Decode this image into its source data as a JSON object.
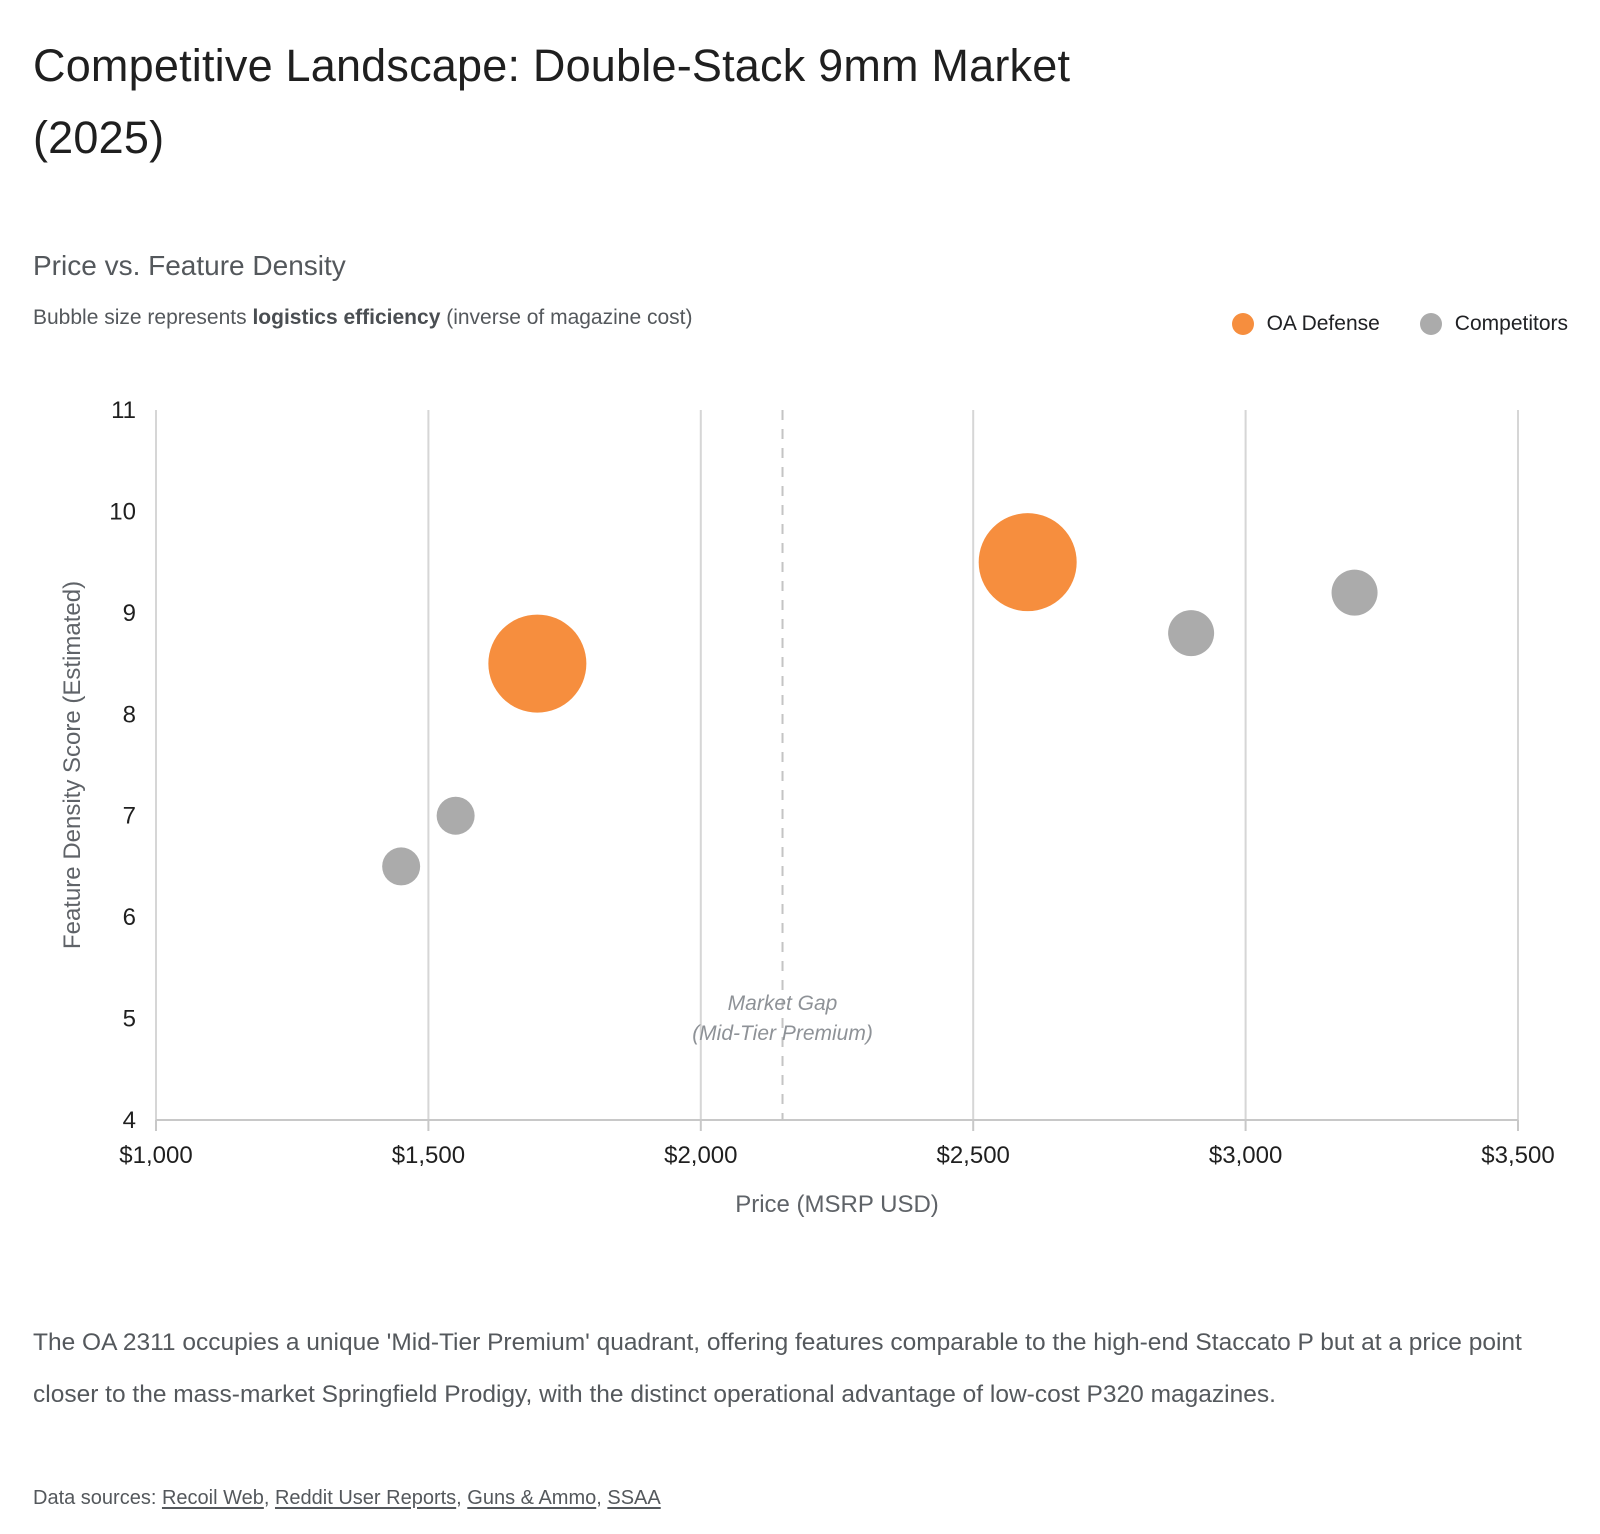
{
  "page": {
    "title": "Competitive Landscape: Double-Stack 9mm Market (2025)"
  },
  "chart": {
    "subtitle": "Price vs. Feature Density",
    "caption_prefix": "Bubble size represents ",
    "caption_bold": "logistics efficiency",
    "caption_suffix": " (inverse of magazine cost)",
    "legend": [
      {
        "label": "OA Defense",
        "color": "#F68E3E"
      },
      {
        "label": "Competitors",
        "color": "#ABABAB"
      }
    ]
  },
  "chart_data": {
    "type": "scatter",
    "subtype": "bubble",
    "title": "Price vs. Feature Density",
    "bubble_note": "Bubble size represents logistics efficiency (inverse of magazine cost)",
    "xlabel": "Price (MSRP USD)",
    "ylabel": "Feature Density Score (Estimated)",
    "xlim": [
      1000,
      3500
    ],
    "ylim": [
      4,
      11
    ],
    "x_ticks": [
      {
        "value": 1000,
        "label": "$1,000"
      },
      {
        "value": 1500,
        "label": "$1,500"
      },
      {
        "value": 2000,
        "label": "$2,000"
      },
      {
        "value": 2500,
        "label": "$2,500"
      },
      {
        "value": 3000,
        "label": "$3,000"
      },
      {
        "value": 3500,
        "label": "$3,500"
      }
    ],
    "y_ticks": [
      4,
      5,
      6,
      7,
      8,
      9,
      10,
      11
    ],
    "grid": "vertical-only",
    "legend_position": "top-right",
    "series": [
      {
        "name": "OA Defense",
        "color": "#F68E3E",
        "points": [
          {
            "x": 1700,
            "y": 8.5,
            "r": 49
          },
          {
            "x": 2600,
            "y": 9.5,
            "r": 49
          }
        ]
      },
      {
        "name": "Competitors",
        "color": "#ABABAB",
        "points": [
          {
            "x": 1450,
            "y": 6.5,
            "r": 19
          },
          {
            "x": 1550,
            "y": 7.0,
            "r": 19
          },
          {
            "x": 2900,
            "y": 8.8,
            "r": 23
          },
          {
            "x": 3200,
            "y": 9.2,
            "r": 23
          }
        ]
      }
    ],
    "annotation": {
      "x": 2150,
      "lines": [
        "Market Gap",
        "(Mid-Tier Premium)"
      ],
      "style": "italic dashed vertical line"
    }
  },
  "colors": {
    "oa_defense": "#F68E3E",
    "competitors": "#ABABAB",
    "gridline": "#D6D6D6",
    "axis_line": "#C8C8C8",
    "dashed_line": "#C4C4C4",
    "tick_label": "#1F1F1F",
    "axis_title": "#5F6368",
    "annotation_text": "#8E9297"
  },
  "footer": {
    "paragraph": "The OA 2311 occupies a unique 'Mid-Tier Premium' quadrant, offering features comparable to the high-end Staccato P but at a price point closer to the mass-market Springfield Prodigy, with the distinct operational advantage of low-cost P320 magazines.",
    "sources_label": "Data sources: ",
    "sources": [
      {
        "label": "Recoil Web"
      },
      {
        "label": "Reddit User Reports"
      },
      {
        "label": "Guns & Ammo"
      },
      {
        "label": "SSAA"
      }
    ]
  }
}
